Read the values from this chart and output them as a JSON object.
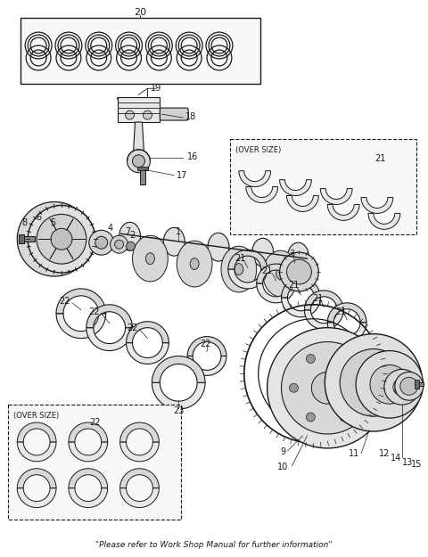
{
  "background_color": "#ffffff",
  "line_color": "#1a1a1a",
  "footer": "\"Please refer to Work Shop Manual for further information\"",
  "fig_width": 4.8,
  "fig_height": 6.25,
  "dpi": 100
}
